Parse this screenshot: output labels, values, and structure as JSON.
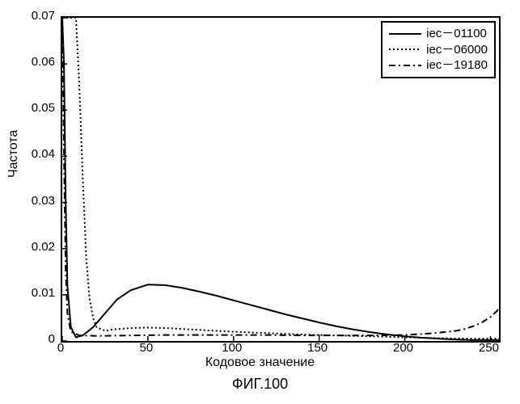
{
  "chart": {
    "type": "line",
    "xlabel": "Кодовое значение",
    "ylabel": "Частота",
    "caption": "ФИГ.100",
    "label_fontsize": 16,
    "tick_fontsize": 15,
    "caption_fontsize": 18,
    "background_color": "#ffffff",
    "border_color": "#000000",
    "line_color": "#000000",
    "line_width": 2,
    "xlim": [
      0,
      255
    ],
    "ylim": [
      0,
      0.07
    ],
    "xticks": [
      0,
      50,
      100,
      150,
      200,
      250
    ],
    "yticks": [
      0,
      0.01,
      0.02,
      0.03,
      0.04,
      0.05,
      0.06,
      0.07
    ],
    "ytick_labels": [
      "0",
      "0.01",
      "0.02",
      "0.03",
      "0.04",
      "0.05",
      "0.06",
      "0.07"
    ],
    "legend": {
      "position": "top-right",
      "border_color": "#000000",
      "items": [
        {
          "label": "iec－01100",
          "style": "solid"
        },
        {
          "label": "iec－06000",
          "style": "dotted"
        },
        {
          "label": "iec－19180",
          "style": "dashdot"
        }
      ]
    },
    "series": [
      {
        "name": "iec-01100",
        "style": "solid",
        "points": [
          [
            0,
            0.08
          ],
          [
            1,
            0.06
          ],
          [
            2,
            0.03
          ],
          [
            3,
            0.012
          ],
          [
            5,
            0.003
          ],
          [
            8,
            0.0008
          ],
          [
            12,
            0.0012
          ],
          [
            18,
            0.003
          ],
          [
            25,
            0.006
          ],
          [
            32,
            0.009
          ],
          [
            40,
            0.011
          ],
          [
            50,
            0.0122
          ],
          [
            60,
            0.0121
          ],
          [
            70,
            0.0115
          ],
          [
            80,
            0.0107
          ],
          [
            90,
            0.0098
          ],
          [
            100,
            0.0088
          ],
          [
            110,
            0.0078
          ],
          [
            120,
            0.0068
          ],
          [
            130,
            0.0058
          ],
          [
            140,
            0.0049
          ],
          [
            150,
            0.004
          ],
          [
            160,
            0.0032
          ],
          [
            170,
            0.0025
          ],
          [
            180,
            0.0019
          ],
          [
            190,
            0.0014
          ],
          [
            200,
            0.001
          ],
          [
            210,
            0.0007
          ],
          [
            220,
            0.0005
          ],
          [
            230,
            0.0003
          ],
          [
            240,
            0.0002
          ],
          [
            250,
            0.0002
          ],
          [
            255,
            0.0002
          ]
        ]
      },
      {
        "name": "iec-06000",
        "style": "dotted",
        "points": [
          [
            0,
            0.08
          ],
          [
            1,
            0.075
          ],
          [
            2,
            0.072
          ],
          [
            4,
            0.07
          ],
          [
            6,
            0.072
          ],
          [
            8,
            0.07
          ],
          [
            10,
            0.055
          ],
          [
            12,
            0.035
          ],
          [
            14,
            0.018
          ],
          [
            16,
            0.009
          ],
          [
            18,
            0.005
          ],
          [
            20,
            0.003
          ],
          [
            25,
            0.0022
          ],
          [
            30,
            0.0025
          ],
          [
            40,
            0.0028
          ],
          [
            50,
            0.0029
          ],
          [
            60,
            0.0028
          ],
          [
            70,
            0.0026
          ],
          [
            80,
            0.0024
          ],
          [
            90,
            0.0022
          ],
          [
            100,
            0.002
          ],
          [
            120,
            0.0017
          ],
          [
            140,
            0.0014
          ],
          [
            160,
            0.0012
          ],
          [
            180,
            0.001
          ],
          [
            200,
            0.0008
          ],
          [
            220,
            0.0006
          ],
          [
            240,
            0.0005
          ],
          [
            255,
            0.0005
          ]
        ]
      },
      {
        "name": "iec-19180",
        "style": "dashdot",
        "points": [
          [
            0,
            0.08
          ],
          [
            1,
            0.04
          ],
          [
            2,
            0.015
          ],
          [
            3,
            0.006
          ],
          [
            5,
            0.002
          ],
          [
            10,
            0.0012
          ],
          [
            20,
            0.0011
          ],
          [
            40,
            0.0012
          ],
          [
            60,
            0.0013
          ],
          [
            80,
            0.0013
          ],
          [
            100,
            0.0013
          ],
          [
            120,
            0.0013
          ],
          [
            140,
            0.0012
          ],
          [
            160,
            0.0012
          ],
          [
            180,
            0.0012
          ],
          [
            200,
            0.0013
          ],
          [
            210,
            0.0015
          ],
          [
            220,
            0.0018
          ],
          [
            230,
            0.0022
          ],
          [
            235,
            0.0026
          ],
          [
            240,
            0.0032
          ],
          [
            245,
            0.004
          ],
          [
            250,
            0.0052
          ],
          [
            253,
            0.0062
          ],
          [
            255,
            0.007
          ]
        ]
      }
    ]
  }
}
